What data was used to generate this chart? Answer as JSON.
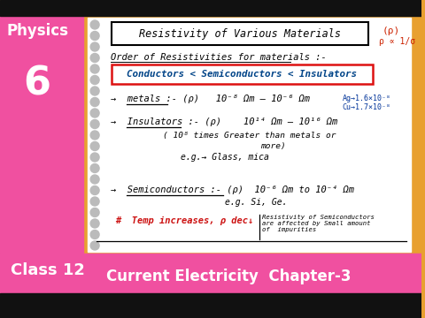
{
  "bg_color": "#E8A030",
  "notebook_color": "#FFFFFF",
  "title_text": "Resistivity of Various Materials",
  "order_text": "Order of Resistivities for materials :-",
  "order_box_text": "Conductors < Semiconductors < Insulators",
  "metals_line": "→  metals :- (ρ)   10⁻⁸ Ωm – 10⁻⁶ Ωm",
  "insulators_line": "→  Insulators :- (ρ)    10¹⁴ Ωm – 10¹⁶ Ωm",
  "insulators_note": "( 10⁸ times Greater than metals or",
  "insulators_note2": "more)",
  "insulators_eg": "e.g.→ Glass, mica",
  "semiconductors_line": "→  Semiconductors :- (ρ)  10⁻⁶ Ωm to 10⁻⁴ Ωm",
  "semiconductors_eg": "e.g. Si, Ge.",
  "temp_text": "#  Temp increases, ρ dec↓",
  "side_note": "Resistivity of Semiconductors\nare affected by Small amount\nof  impurities",
  "ag_note": "Ag→1.6×10⁻⁸",
  "cu_note": "Cu→1.7×10⁻⁸",
  "rho_sym": "(ρ)",
  "rho_prop": "ρ ∝ 1/σ",
  "physics_text": "Physics",
  "number_text": "6",
  "class_text": "Class 12",
  "chapter_text": "Current Electricity  Chapter-3",
  "left_panel_color": "#F050A0",
  "bottom_bar_color": "#F050A0",
  "spiral_color": "#BBBBBB",
  "black_bar": "#111111"
}
